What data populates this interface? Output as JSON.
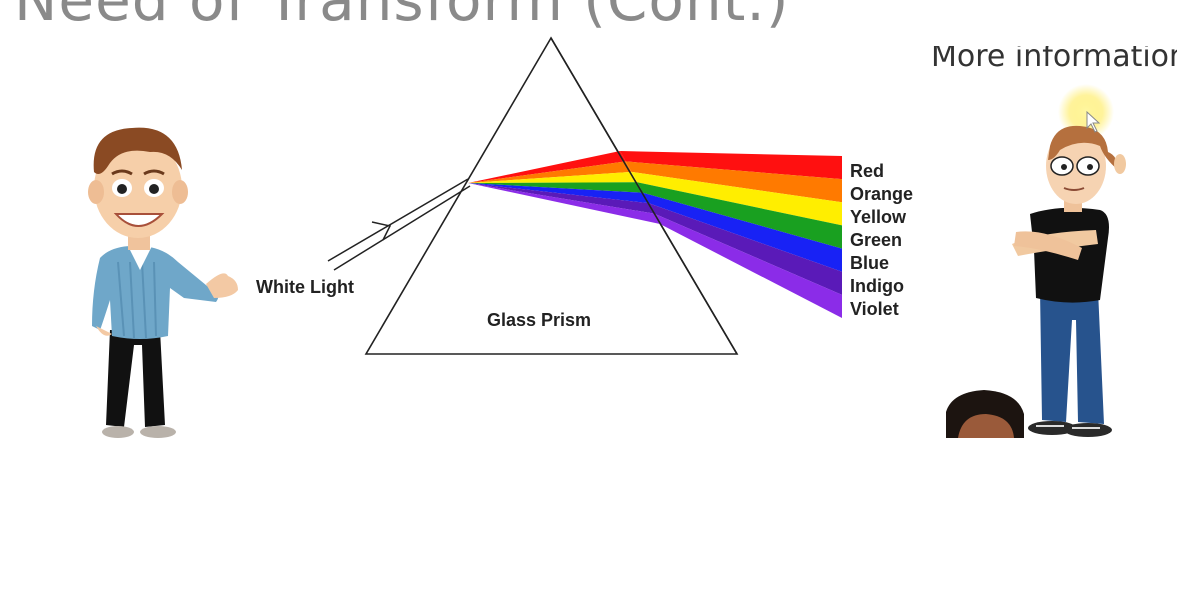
{
  "slide": {
    "title": "Need of Transform (Cont.)",
    "more_info": "More information"
  },
  "diagram": {
    "white_light_label": "White Light",
    "prism_label": "Glass Prism",
    "spectrum": [
      {
        "name": "Red",
        "color": "#ff1010"
      },
      {
        "name": "Orange",
        "color": "#ff7a00"
      },
      {
        "name": "Yellow",
        "color": "#ffee00"
      },
      {
        "name": "Green",
        "color": "#19a020"
      },
      {
        "name": "Blue",
        "color": "#1822f5"
      },
      {
        "name": "Indigo",
        "color": "#5a1ab8"
      },
      {
        "name": "Violet",
        "color": "#8b2ce8"
      }
    ]
  }
}
